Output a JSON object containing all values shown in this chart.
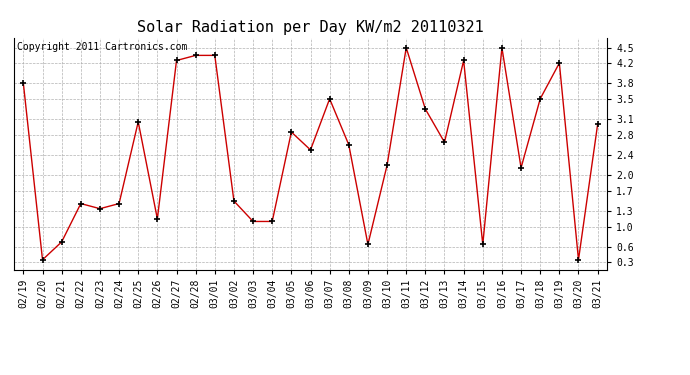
{
  "title": "Solar Radiation per Day KW/m2 20110321",
  "copyright": "Copyright 2011 Cartronics.com",
  "dates": [
    "02/19",
    "02/20",
    "02/21",
    "02/22",
    "02/23",
    "02/24",
    "02/25",
    "02/26",
    "02/27",
    "02/28",
    "03/01",
    "03/02",
    "03/03",
    "03/04",
    "03/05",
    "03/06",
    "03/07",
    "03/08",
    "03/09",
    "03/10",
    "03/11",
    "03/12",
    "03/13",
    "03/14",
    "03/15",
    "03/16",
    "03/17",
    "03/18",
    "03/19",
    "03/20",
    "03/21"
  ],
  "values": [
    3.8,
    0.35,
    0.7,
    1.45,
    1.35,
    1.45,
    3.05,
    1.15,
    4.25,
    4.35,
    4.35,
    1.5,
    1.1,
    1.1,
    2.85,
    2.5,
    3.5,
    2.6,
    0.65,
    2.2,
    4.5,
    3.3,
    2.65,
    4.25,
    0.65,
    4.5,
    2.15,
    3.5,
    4.2,
    0.35,
    3.0
  ],
  "line_color": "#cc0000",
  "marker_color": "#000000",
  "bg_color": "#ffffff",
  "grid_color": "#aaaaaa",
  "yticks": [
    0.3,
    0.6,
    1.0,
    1.3,
    1.7,
    2.0,
    2.4,
    2.8,
    3.1,
    3.5,
    3.8,
    4.2,
    4.5
  ],
  "ylim": [
    0.15,
    4.7
  ],
  "title_fontsize": 11,
  "copyright_fontsize": 7,
  "tick_fontsize": 7,
  "ytick_fontsize": 7
}
